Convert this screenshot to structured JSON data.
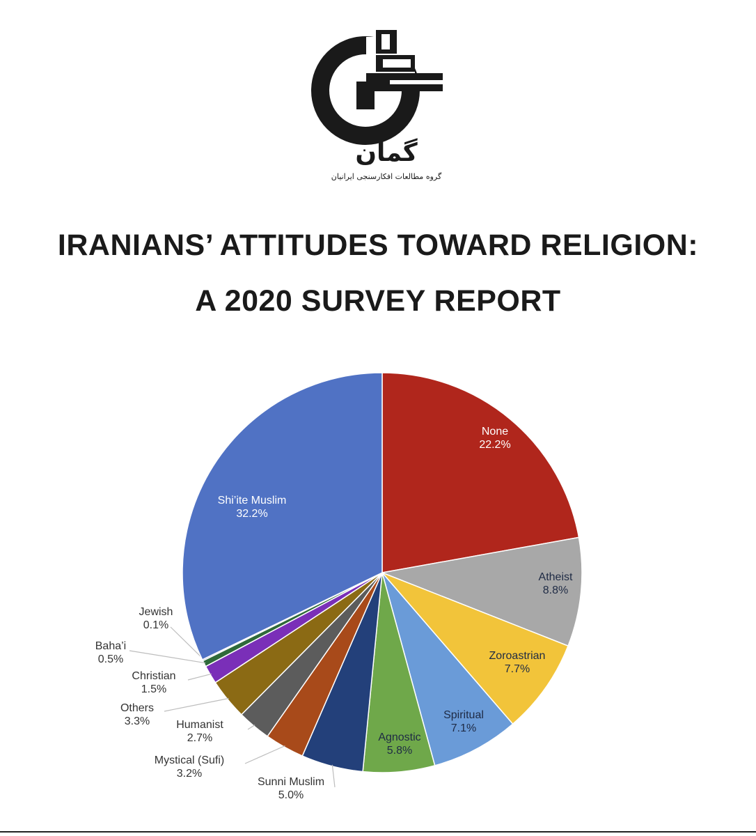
{
  "header": {
    "logo_name": "گمان",
    "logo_subtitle": "گروه مطالعات افکارسنجی ایرانیان",
    "title_line1": "IRANIANS’ ATTITUDES TOWARD RELIGION:",
    "title_line2": "A 2020 SURVEY REPORT"
  },
  "chart_data": {
    "type": "pie",
    "title": "",
    "start": "12 o'clock",
    "direction": "clockwise",
    "slices": [
      {
        "label": "None",
        "value": 22.2,
        "display": "22.2%",
        "color": "#b0261c"
      },
      {
        "label": "Atheist",
        "value": 8.8,
        "display": "8.8%",
        "color": "#a8a8a8"
      },
      {
        "label": "Zoroastrian",
        "value": 7.7,
        "display": "7.7%",
        "color": "#f2c43a"
      },
      {
        "label": "Spiritual",
        "value": 7.1,
        "display": "7.1%",
        "color": "#6a9bd8"
      },
      {
        "label": "Agnostic",
        "value": 5.8,
        "display": "5.8%",
        "color": "#6fa84a"
      },
      {
        "label": "Sunni Muslim",
        "value": 5.0,
        "display": "5.0%",
        "color": "#23407a"
      },
      {
        "label": "Mystical (Sufi)",
        "value": 3.2,
        "display": "3.2%",
        "color": "#a84a1a"
      },
      {
        "label": "Humanist",
        "value": 2.7,
        "display": "2.7%",
        "color": "#5c5c5c"
      },
      {
        "label": "Others",
        "value": 3.3,
        "display": "3.3%",
        "color": "#8b6a14"
      },
      {
        "label": "Christian",
        "value": 1.5,
        "display": "1.5%",
        "color": "#7a2fb8"
      },
      {
        "label": "Baha’i",
        "value": 0.5,
        "display": "0.5%",
        "color": "#2f6a3a"
      },
      {
        "label": "Jewish",
        "value": 0.1,
        "display": "0.1%",
        "color": "#3a4aa0"
      },
      {
        "label": "Shi’ite Muslim",
        "value": 32.2,
        "display": "32.2%",
        "color": "#5072c4"
      }
    ]
  }
}
